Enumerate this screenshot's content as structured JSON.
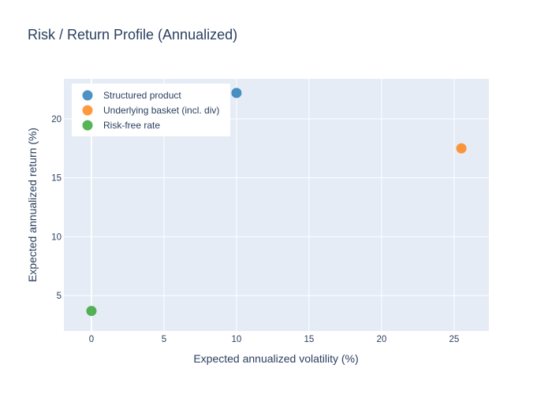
{
  "chart_data": {
    "type": "scatter",
    "title": "Risk / Return Profile (Annualized)",
    "xlabel": "Expected annualized volatility (%)",
    "ylabel": "Expected annualized return (%)",
    "xlim": [
      -1.9,
      27.4
    ],
    "ylim": [
      2.0,
      23.4
    ],
    "xticks": [
      0,
      5,
      10,
      15,
      20,
      25
    ],
    "yticks": [
      5,
      10,
      15,
      20
    ],
    "grid": true,
    "legend_position": "top-left",
    "series": [
      {
        "name": "Structured product",
        "color": "#1f77b4",
        "points": [
          {
            "x": 10.0,
            "y": 22.2
          }
        ]
      },
      {
        "name": "Underlying basket (incl. div)",
        "color": "#ff7f0e",
        "points": [
          {
            "x": 25.5,
            "y": 17.5
          }
        ]
      },
      {
        "name": "Risk-free rate",
        "color": "#2ca02c",
        "points": [
          {
            "x": 0.0,
            "y": 3.7
          }
        ]
      }
    ]
  }
}
